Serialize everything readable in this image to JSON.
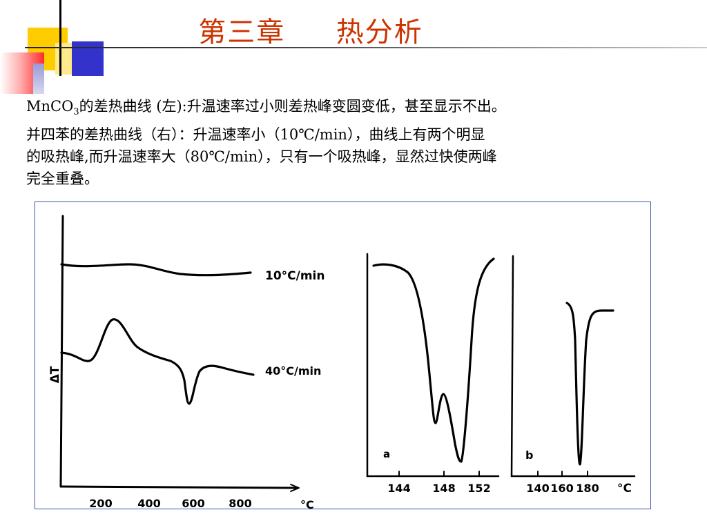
{
  "slide": {
    "title_chapter": "第三章",
    "title_topic": "热分析",
    "para_prefix": "MnCO",
    "para_subscript": "3",
    "para_line1_rest": "的差热曲线 (左):升温速率过小则差热峰变圆变低，甚至显示不出。",
    "para_line2": "并四苯的差热曲线（右）：升温速率小（10℃/min），曲线上有两个明显",
    "para_line3": "的吸热峰,而升温速率大（80℃/min），只有一个吸热峰，显然过快使两峰",
    "para_line4": "完全重叠。"
  },
  "figure": {
    "left_plot": {
      "ylabel": "ΔT",
      "x_unit": "°C",
      "x_ticks": [
        "200",
        "400",
        "600",
        "800"
      ],
      "curve_labels": [
        "10°C/min",
        "40°C/min"
      ]
    },
    "panel_a": {
      "label": "a",
      "x_ticks": [
        "144",
        "148",
        "152"
      ]
    },
    "panel_b": {
      "label": "b",
      "x_ticks": [
        "140",
        "160",
        "180"
      ],
      "x_unit": "°C"
    }
  },
  "colors": {
    "title": "#cc3300",
    "deco_yellow": "#ffcc00",
    "deco_blue": "#3333cc",
    "deco_red": "#ff3333",
    "frame_border": "#3355aa"
  }
}
